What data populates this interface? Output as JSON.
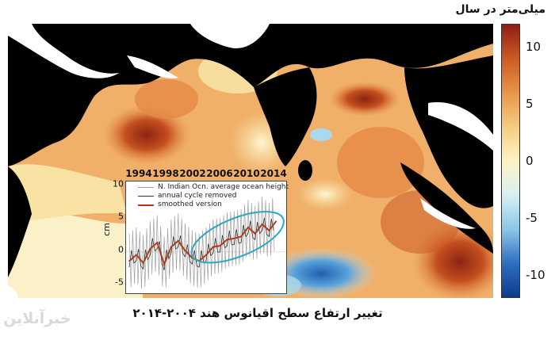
{
  "unit_title": "میلی‌متر در سال",
  "caption": "تغییر ارتفاع سطح اقیانوس هند ۲۰۰۴-۲۰۱۴",
  "logo_text": "خبرآنلاین",
  "colorbar": {
    "labels": [
      "10",
      "5",
      "0",
      "-5",
      "-10"
    ],
    "values": [
      10,
      5,
      0,
      -5,
      -10
    ],
    "range": [
      -12,
      12
    ],
    "stops": [
      "#0d3a8c",
      "#2f6fc0",
      "#8cc6e8",
      "#d8f0f4",
      "#fff3c4",
      "#f5cc80",
      "#e8954a",
      "#cc5a25",
      "#8c1e12"
    ]
  },
  "map_colors": {
    "land": "#000000",
    "coast": "#ffffff",
    "base": "#f0b06a",
    "warm": "#e58a45",
    "hot": "#c4501f",
    "deep": "#8d2313",
    "cool": "#f8e3a4",
    "pale": "#fbf1c8",
    "blue": "#3c88cf",
    "lightblue": "#a9d8ef"
  },
  "inset": {
    "years": [
      "1994",
      "1998",
      "2002",
      "2006",
      "2010",
      "2014"
    ],
    "ylabel": "cm",
    "yticks": [
      "10",
      "5",
      "0",
      "-5"
    ],
    "legend": [
      {
        "label": "N. Indian Ocn. average ocean height",
        "color": "#a0a0a0"
      },
      {
        "label": "annual cycle removed",
        "color": "#333333"
      },
      {
        "label": "smoothed version",
        "color": "#b03a1a"
      }
    ],
    "ellipse_color": "#2aa6c8"
  },
  "chart_data": {
    "type": "line",
    "x": [
      1993,
      1994,
      1995,
      1996,
      1997,
      1998,
      1999,
      2000,
      2001,
      2002,
      2003,
      2004,
      2005,
      2006,
      2007,
      2008,
      2009,
      2010,
      2011,
      2012,
      2013,
      2014
    ],
    "series": [
      {
        "name": "smoothed version",
        "values": [
          -1.5,
          -0.5,
          -1.8,
          0.5,
          1.5,
          -2.0,
          0.8,
          1.8,
          0.2,
          -1.0,
          -1.5,
          -0.5,
          0.8,
          1.0,
          2.0,
          2.2,
          2.5,
          4.0,
          3.0,
          4.5,
          3.5,
          5.0
        ]
      }
    ],
    "xlim": [
      1993,
      2015
    ],
    "ylim": [
      -6,
      11
    ],
    "ylabel": "cm"
  }
}
